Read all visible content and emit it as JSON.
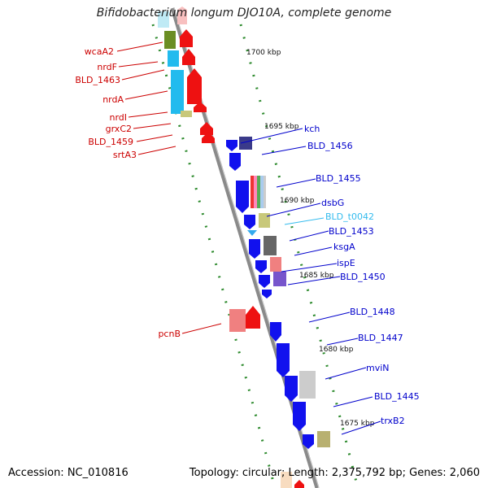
{
  "title": "Bifidobacterium longum DJO10A, complete genome",
  "footer": {
    "accession": "Accession: NC_010816",
    "topology": "Topology: circular; Length: 2,375,792 bp; Genes: 2,060"
  },
  "colors": {
    "backbone": "#8a8a8a",
    "left_label": "#cc0000",
    "right_label": "#0000cc",
    "trna_label": "#33bbee",
    "tick": "#228822"
  },
  "ruler": [
    {
      "label": "1700 kbp"
    },
    {
      "label": "1695 kbp"
    },
    {
      "label": "1690 kbp"
    },
    {
      "label": "1685 kbp"
    },
    {
      "label": "1680 kbp"
    },
    {
      "label": "1675 kbp"
    }
  ],
  "left_genes": [
    {
      "label": "wcaA2"
    },
    {
      "label": "nrdF"
    },
    {
      "label": "BLD_1463"
    },
    {
      "label": "nrdA"
    },
    {
      "label": "nrdI"
    },
    {
      "label": "grxC2"
    },
    {
      "label": "BLD_1459"
    },
    {
      "label": "srtA3"
    },
    {
      "label": "pcnB"
    }
  ],
  "right_genes": [
    {
      "label": "kch"
    },
    {
      "label": "BLD_1456"
    },
    {
      "label": "BLD_1455"
    },
    {
      "label": "dsbG"
    },
    {
      "label": "BLD_t0042"
    },
    {
      "label": "BLD_1453"
    },
    {
      "label": "ksgA"
    },
    {
      "label": "ispE"
    },
    {
      "label": "BLD_1450"
    },
    {
      "label": "BLD_1448"
    },
    {
      "label": "BLD_1447"
    },
    {
      "label": "mviN"
    },
    {
      "label": "BLD_1445"
    },
    {
      "label": "trxB2"
    }
  ]
}
